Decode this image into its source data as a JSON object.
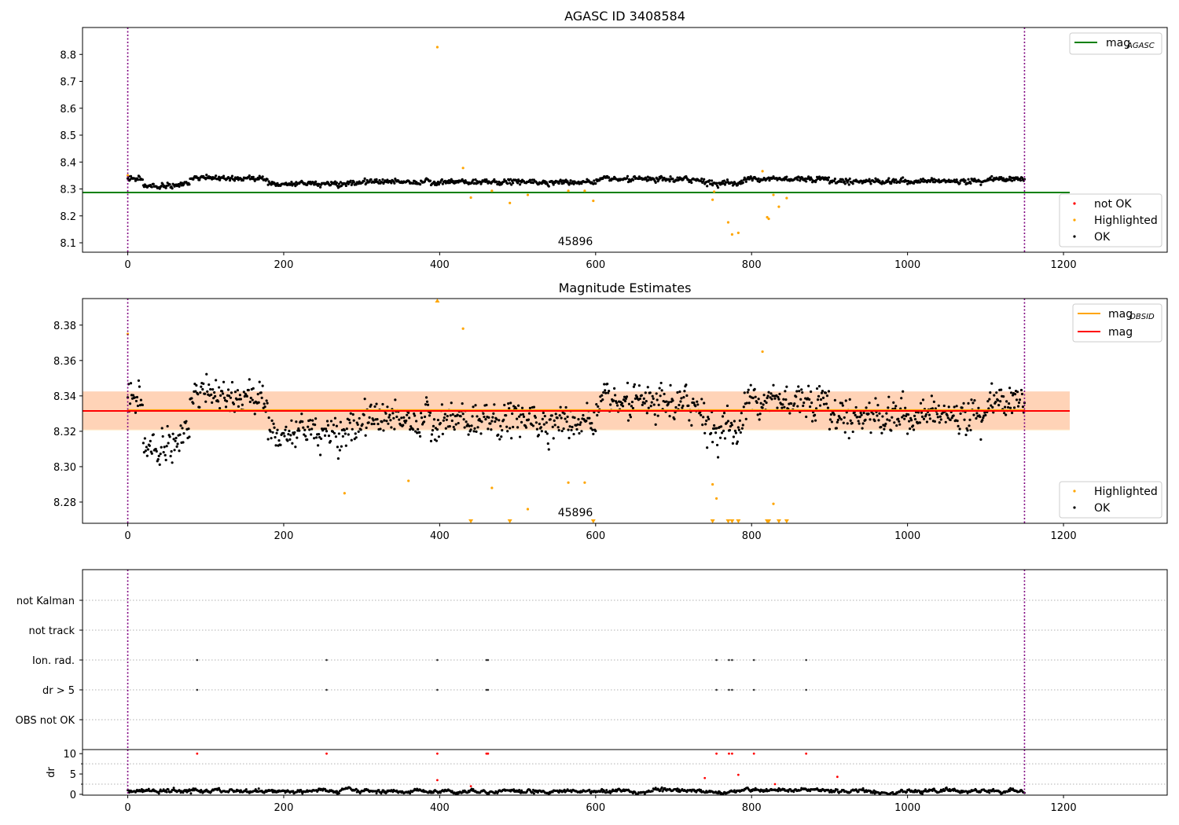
{
  "chart_data": [
    {
      "type": "scatter",
      "title": "AGASC ID 3408584",
      "xlim": [
        -58,
        1333
      ],
      "ylim": [
        8.065,
        8.9
      ],
      "x_ticks": [
        0,
        200,
        400,
        600,
        800,
        1000,
        1200
      ],
      "y_ticks": [
        8.1,
        8.2,
        8.3,
        8.4,
        8.5,
        8.6,
        8.7,
        8.8
      ],
      "x_tick_labels": [
        "0",
        "200",
        "400",
        "600",
        "800",
        "1000",
        "1200"
      ],
      "y_tick_labels": [
        "8.1",
        "8.2",
        "8.3",
        "8.4",
        "8.5",
        "8.6",
        "8.7",
        "8.8"
      ],
      "obsid_boundaries": [
        0,
        1150
      ],
      "annotation": "45896",
      "reference_line": {
        "name": "mag_AGASC",
        "y": 8.287,
        "color": "#008000"
      },
      "legend_lines": [
        {
          "label": "mag",
          "subscript": "AGASC",
          "color": "#008000"
        }
      ],
      "legend_points": [
        {
          "label": "not OK",
          "color": "#ff0000"
        },
        {
          "label": "Highlighted",
          "color": "#ffa500"
        },
        {
          "label": "OK",
          "color": "#000000"
        }
      ],
      "highlighted": {
        "x": [
          0,
          397,
          430,
          440,
          467,
          490,
          513,
          565,
          586,
          597,
          750,
          752,
          770,
          775,
          783,
          814,
          820,
          822,
          828,
          835,
          845
        ],
        "y": [
          8.35,
          8.827,
          8.378,
          8.268,
          8.293,
          8.248,
          8.278,
          8.293,
          8.293,
          8.256,
          8.26,
          8.29,
          8.176,
          8.131,
          8.137,
          8.366,
          8.195,
          8.189,
          8.278,
          8.234,
          8.266
        ]
      },
      "ok_series": {
        "x_range": [
          0,
          1150
        ],
        "base": 8.33,
        "note": "black points, one per sample, mag 8.31-8.36"
      }
    },
    {
      "type": "scatter",
      "title": "Magnitude Estimates",
      "xlim": [
        -58,
        1333
      ],
      "ylim": [
        8.268,
        8.395
      ],
      "x_ticks": [
        0,
        200,
        400,
        600,
        800,
        1000,
        1200
      ],
      "y_ticks": [
        8.28,
        8.3,
        8.32,
        8.34,
        8.36,
        8.38
      ],
      "x_tick_labels": [
        "0",
        "200",
        "400",
        "600",
        "800",
        "1000",
        "1200"
      ],
      "y_tick_labels": [
        "8.28",
        "8.30",
        "8.32",
        "8.34",
        "8.36",
        "8.38"
      ],
      "obsid_boundaries": [
        0,
        1150
      ],
      "annotation": "45896",
      "mag": 8.3315,
      "mag_band": [
        8.321,
        8.3425
      ],
      "mag_obsid": 8.332,
      "mag_obsid_band": [
        8.3205,
        8.3425
      ],
      "legend_lines": [
        {
          "label": "mag",
          "subscript": "OBSID",
          "color": "#ffa500"
        },
        {
          "label": "mag",
          "subscript": "",
          "color": "#ff0000"
        }
      ],
      "legend_points": [
        {
          "label": "Highlighted",
          "color": "#ffa500"
        },
        {
          "label": "OK",
          "color": "#000000"
        }
      ],
      "highlighted": {
        "x": [
          0,
          430,
          467,
          513,
          565,
          586,
          750,
          755,
          814,
          828,
          278,
          360
        ],
        "y": [
          8.375,
          8.378,
          8.288,
          8.276,
          8.291,
          8.291,
          8.29,
          8.282,
          8.365,
          8.279,
          8.285,
          8.292
        ]
      },
      "highlighted_out_of_range_above_x": [
        397
      ],
      "highlighted_out_of_range_below_x": [
        440,
        490,
        597,
        750,
        770,
        775,
        783,
        820,
        822,
        835,
        845
      ]
    },
    {
      "type": "scatter",
      "title": "",
      "xlim": [
        -58,
        1333
      ],
      "x_ticks": [
        0,
        200,
        400,
        600,
        800,
        1000,
        1200
      ],
      "x_tick_labels": [
        "0",
        "200",
        "400",
        "600",
        "800",
        "1000",
        "1200"
      ],
      "obsid_boundaries": [
        0,
        1150
      ],
      "flag_categories": [
        "not Kalman",
        "not track",
        "Ion. rad.",
        "dr > 5",
        "OBS not OK"
      ],
      "flags": {
        "Ion. rad.": [
          89,
          255,
          397,
          460,
          462,
          755,
          771,
          775,
          803,
          870
        ],
        "dr > 5": [
          89,
          255,
          397,
          460,
          462,
          755,
          771,
          775,
          803,
          870
        ]
      }
    },
    {
      "type": "scatter",
      "title": "",
      "ylabel": "dr",
      "xlim": [
        -58,
        1333
      ],
      "ylim": [
        -0.2,
        11
      ],
      "x_ticks": [
        0,
        200,
        400,
        600,
        800,
        1000,
        1200
      ],
      "y_ticks": [
        0,
        5,
        10
      ],
      "x_tick_labels": [
        "0",
        "200",
        "400",
        "600",
        "800",
        "1000",
        "1200"
      ],
      "y_tick_labels": [
        "0",
        "5",
        "10"
      ],
      "obsid_boundaries": [
        0,
        1150
      ],
      "flagged_dr": {
        "x": [
          89,
          255,
          397,
          460,
          462,
          755,
          771,
          775,
          803,
          870,
          397,
          440,
          740,
          783,
          910,
          830
        ],
        "y": [
          10,
          10,
          10,
          10,
          10,
          10,
          10,
          10,
          10,
          10,
          3.5,
          2,
          4,
          4.8,
          4.3,
          2.5
        ]
      },
      "ok_dr_range": [
        0,
        2
      ]
    }
  ]
}
